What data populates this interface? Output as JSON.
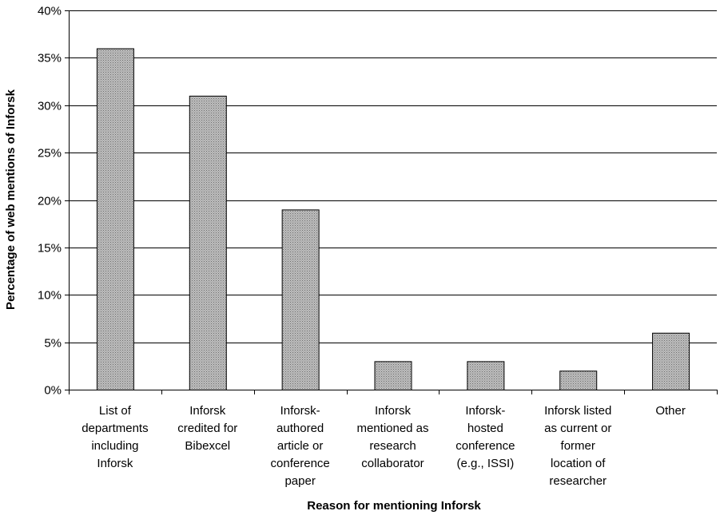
{
  "chart_data": {
    "type": "bar",
    "categories": [
      [
        "List of",
        "departments",
        "including",
        "Inforsk"
      ],
      [
        "Inforsk",
        "credited for",
        "Bibexcel"
      ],
      [
        "Inforsk-",
        "authored",
        "article or",
        "conference",
        "paper"
      ],
      [
        "Inforsk",
        "mentioned as",
        "research",
        "collaborator"
      ],
      [
        "Inforsk-",
        "hosted",
        "conference",
        "(e.g., ISSI)"
      ],
      [
        "Inforsk listed",
        "as current or",
        "former",
        "location of",
        "researcher"
      ],
      [
        "Other"
      ]
    ],
    "values": [
      36,
      31,
      19,
      3,
      3,
      2,
      6
    ],
    "ylim": [
      0,
      40
    ],
    "yticks": [
      0,
      5,
      10,
      15,
      20,
      25,
      30,
      35,
      40
    ],
    "ytick_labels": [
      "0%",
      "5%",
      "10%",
      "15%",
      "20%",
      "25%",
      "30%",
      "35%",
      "40%"
    ],
    "xlabel": "Reason for mentioning Inforsk",
    "ylabel": "Percentage of web mentions of Inforsk",
    "grid": true,
    "legend": "none",
    "bar_fill": "#a6a6a6",
    "bar_stroke": "#000000"
  }
}
